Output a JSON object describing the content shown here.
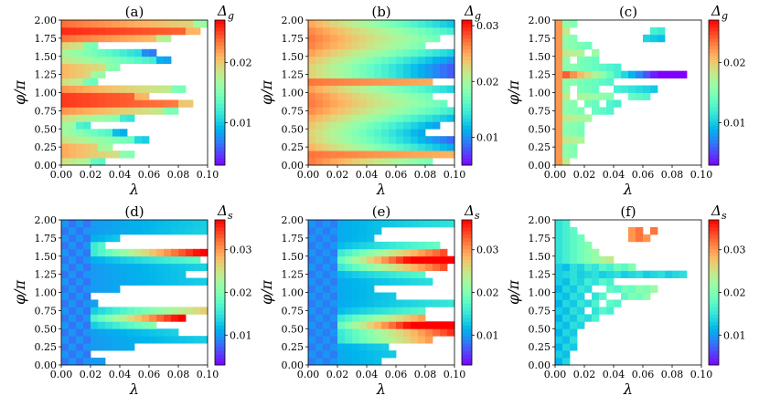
{
  "chart_data": [
    {
      "type": "heatmap",
      "title": "(a)",
      "colorbar_label": "Δ",
      "colorbar_sub": "g",
      "xlabel": "λ",
      "ylabel": "φ/π",
      "xlim": [
        0,
        0.1
      ],
      "ylim": [
        0,
        2
      ],
      "clim": [
        0.003,
        0.027
      ],
      "xticks": [
        "0.00",
        "0.02",
        "0.04",
        "0.06",
        "0.08",
        "0.10"
      ],
      "yticks": [
        "0.00",
        "0.25",
        "0.50",
        "0.75",
        "1.00",
        "1.25",
        "1.50",
        "1.75",
        "2.00"
      ],
      "cbar_ticks": [
        {
          "v": 0.01,
          "label": "0.01"
        },
        {
          "v": 0.02,
          "label": "0.02"
        }
      ],
      "pattern": "a"
    },
    {
      "type": "heatmap",
      "title": "(b)",
      "colorbar_label": "Δ",
      "colorbar_sub": "g",
      "xlabel": "λ",
      "ylabel": "φ/π",
      "xlim": [
        0,
        0.1
      ],
      "ylim": [
        0,
        2
      ],
      "clim": [
        0.005,
        0.031
      ],
      "xticks": [
        "0.00",
        "0.02",
        "0.04",
        "0.06",
        "0.08",
        "0.10"
      ],
      "yticks": [
        "0.00",
        "0.25",
        "0.50",
        "0.75",
        "1.00",
        "1.25",
        "1.50",
        "1.75",
        "2.00"
      ],
      "cbar_ticks": [
        {
          "v": 0.01,
          "label": "0.01"
        },
        {
          "v": 0.02,
          "label": "0.02"
        },
        {
          "v": 0.03,
          "label": "0.03"
        }
      ],
      "pattern": "b"
    },
    {
      "type": "heatmap",
      "title": "(c)",
      "colorbar_label": "Δ",
      "colorbar_sub": "g",
      "xlabel": "λ",
      "ylabel": "φ/π",
      "xlim": [
        0,
        0.1
      ],
      "ylim": [
        0,
        2
      ],
      "clim": [
        0.003,
        0.027
      ],
      "xticks": [
        "0.00",
        "0.02",
        "0.04",
        "0.06",
        "0.08",
        "0.10"
      ],
      "yticks": [
        "0.00",
        "0.25",
        "0.50",
        "0.75",
        "1.00",
        "1.25",
        "1.50",
        "1.75",
        "2.00"
      ],
      "cbar_ticks": [
        {
          "v": 0.01,
          "label": "0.01"
        },
        {
          "v": 0.02,
          "label": "0.02"
        }
      ],
      "pattern": "c"
    },
    {
      "type": "heatmap",
      "title": "(d)",
      "colorbar_label": "Δ",
      "colorbar_sub": "s",
      "xlabel": "λ",
      "ylabel": "φ/π",
      "xlim": [
        0,
        0.1
      ],
      "ylim": [
        0,
        2
      ],
      "clim": [
        0.003,
        0.037
      ],
      "xticks": [
        "0.00",
        "0.02",
        "0.04",
        "0.06",
        "0.08",
        "0.10"
      ],
      "yticks": [
        "0.00",
        "0.25",
        "0.50",
        "0.75",
        "1.00",
        "1.25",
        "1.50",
        "1.75",
        "2.00"
      ],
      "cbar_ticks": [
        {
          "v": 0.01,
          "label": "0.01"
        },
        {
          "v": 0.02,
          "label": "0.02"
        },
        {
          "v": 0.03,
          "label": "0.03"
        }
      ],
      "pattern": "d"
    },
    {
      "type": "heatmap",
      "title": "(e)",
      "colorbar_label": "Δ",
      "colorbar_sub": "s",
      "xlabel": "λ",
      "ylabel": "φ/π",
      "xlim": [
        0,
        0.1
      ],
      "ylim": [
        0,
        2
      ],
      "clim": [
        0.003,
        0.037
      ],
      "xticks": [
        "0.00",
        "0.02",
        "0.04",
        "0.06",
        "0.08",
        "0.10"
      ],
      "yticks": [
        "0.00",
        "0.25",
        "0.50",
        "0.75",
        "1.00",
        "1.25",
        "1.50",
        "1.75",
        "2.00"
      ],
      "cbar_ticks": [
        {
          "v": 0.01,
          "label": "0.01"
        },
        {
          "v": 0.02,
          "label": "0.02"
        },
        {
          "v": 0.03,
          "label": "0.03"
        }
      ],
      "pattern": "e"
    },
    {
      "type": "heatmap",
      "title": "(f)",
      "colorbar_label": "Δ",
      "colorbar_sub": "s",
      "xlabel": "λ",
      "ylabel": "φ/π",
      "xlim": [
        0,
        0.1
      ],
      "ylim": [
        0,
        2
      ],
      "clim": [
        0.003,
        0.037
      ],
      "xticks": [
        "0.00",
        "0.02",
        "0.04",
        "0.06",
        "0.08",
        "0.10"
      ],
      "yticks": [
        "0.00",
        "0.25",
        "0.50",
        "0.75",
        "1.00",
        "1.25",
        "1.50",
        "1.75",
        "2.00"
      ],
      "cbar_ticks": [
        {
          "v": 0.01,
          "label": "0.01"
        },
        {
          "v": 0.02,
          "label": "0.02"
        },
        {
          "v": 0.03,
          "label": "0.03"
        }
      ],
      "pattern": "f"
    }
  ],
  "colormap": "rainbow",
  "grid_shape": {
    "lambda_bins": 20,
    "phi_bins": 20
  }
}
